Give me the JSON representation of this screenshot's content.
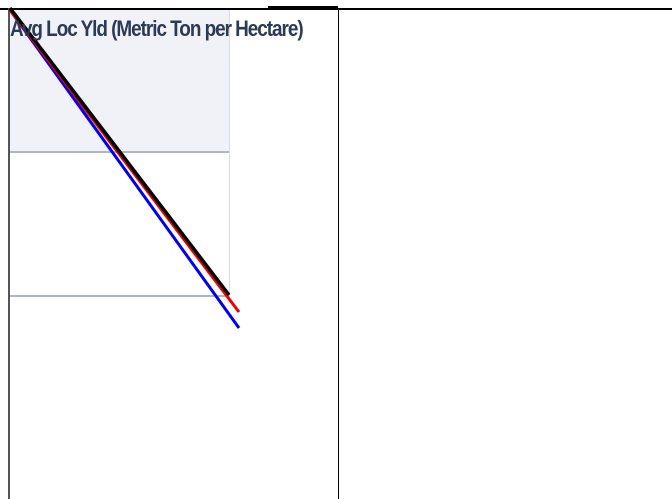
{
  "chart": {
    "title": "Avg Loc Yld (Metric Ton per Hectare)",
    "series": [
      {
        "color": "#0000ee"
      },
      {
        "color": "#ee0000"
      },
      {
        "color": "#000000"
      }
    ]
  }
}
